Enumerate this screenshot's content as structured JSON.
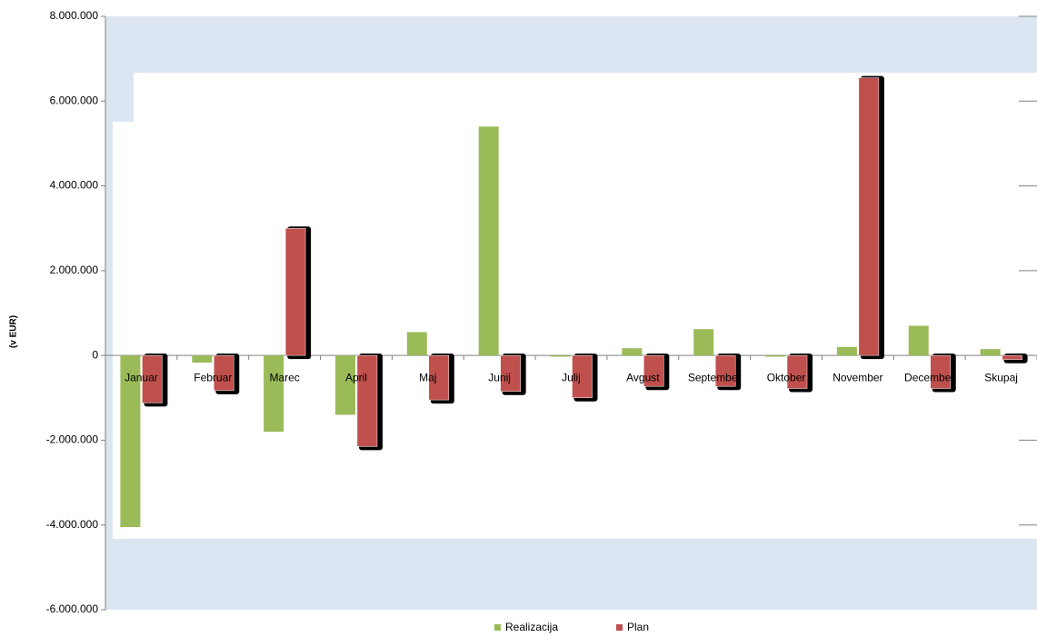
{
  "chart_data": {
    "type": "bar",
    "y_label": "(v EUR)",
    "categories": [
      "Januar",
      "Februar",
      "Marec",
      "April",
      "Maj",
      "Junij",
      "Julij",
      "Avgust",
      "September",
      "Oktober",
      "November",
      "December",
      "Skupaj"
    ],
    "series": [
      {
        "name": "Realizacija",
        "color": "#9bbb59",
        "values": [
          -4050000,
          -170000,
          -1800000,
          -1400000,
          550000,
          5400000,
          -30000,
          170000,
          620000,
          -30000,
          200000,
          700000,
          150000
        ]
      },
      {
        "name": "Plan",
        "color": "#c0504d",
        "values": [
          -1120000,
          -830000,
          3000000,
          -2150000,
          -1050000,
          -850000,
          -1000000,
          -730000,
          -730000,
          -780000,
          6550000,
          -780000,
          -100000
        ]
      }
    ],
    "ylim": [
      -6000000,
      8000000
    ],
    "yticks": [
      {
        "value": -6000000,
        "label": "-6.000.000"
      },
      {
        "value": -4000000,
        "label": "-4.000.000"
      },
      {
        "value": -2000000,
        "label": "-2.000.000"
      },
      0,
      {
        "value": 2000000,
        "label": "2.000.000"
      },
      {
        "value": 4000000,
        "label": "4.000.000"
      },
      {
        "value": 6000000,
        "label": "6.000.000"
      },
      {
        "value": 8000000,
        "label": "8.000.000"
      }
    ],
    "legend": "bottom"
  }
}
